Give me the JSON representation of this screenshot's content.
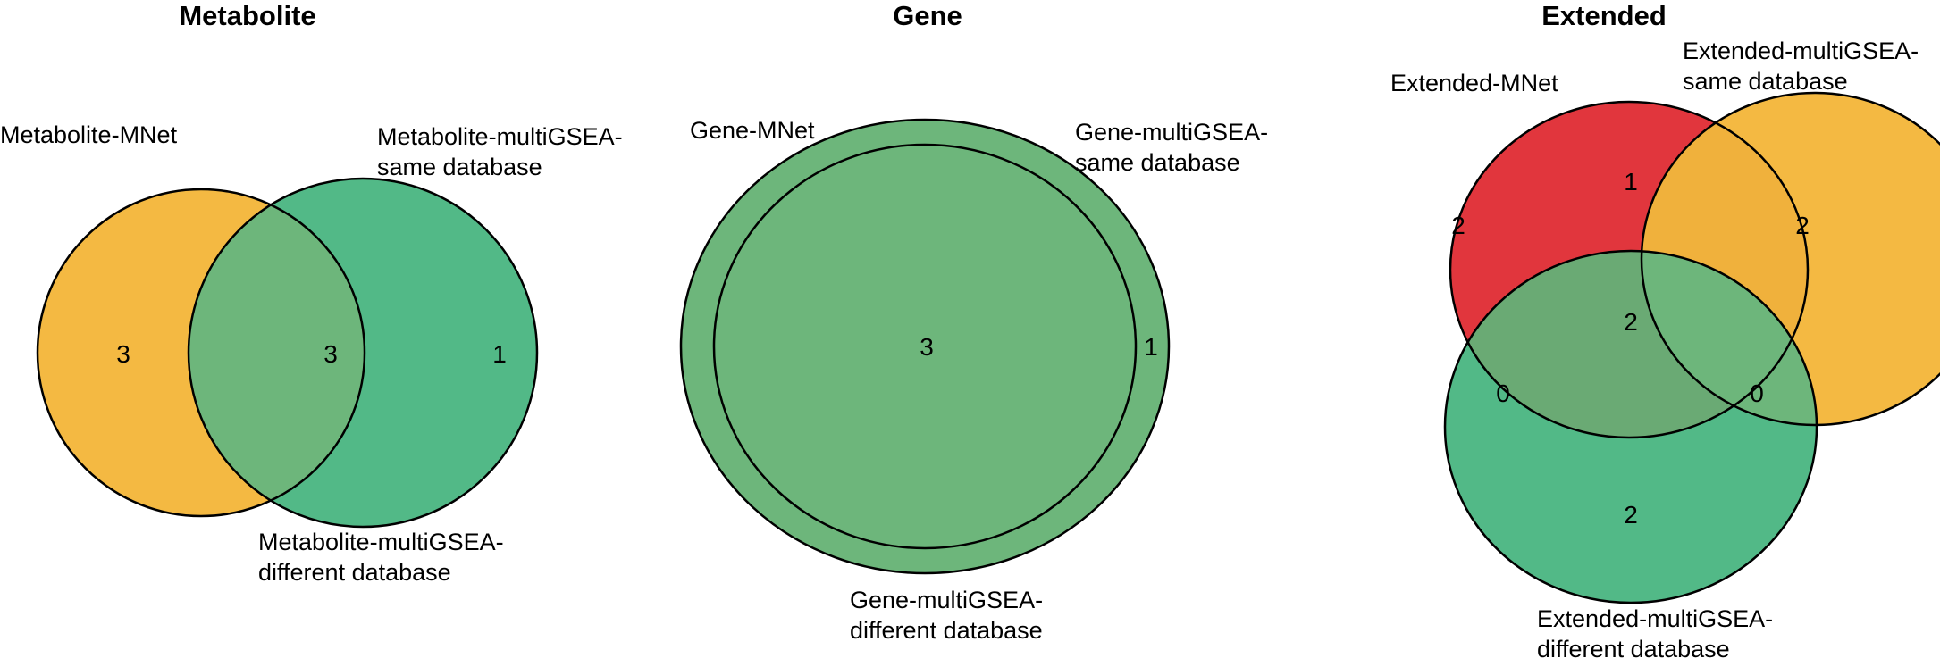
{
  "colors": {
    "orange": "#f4b942",
    "green": "#52b987",
    "red": "#e1363d",
    "green_overlap": "#6db67b",
    "orange_overlap": "#f0b13c",
    "outline": "#000000"
  },
  "panels": [
    {
      "title": "Metabolite",
      "sets": [
        {
          "name": "Metabolite-MNet",
          "lines": [
            "Metabolite-MNet"
          ]
        },
        {
          "name": "Metabolite-multiGSEA-same database",
          "lines": [
            "Metabolite-multiGSEA-",
            "same database"
          ]
        },
        {
          "name": "Metabolite-multiGSEA-different database",
          "lines": [
            "Metabolite-multiGSEA-",
            "different database"
          ]
        }
      ],
      "regions": [
        {
          "region": "Metabolite-MNet only",
          "count": "3"
        },
        {
          "region": "Metabolite-MNet ∩ Metabolite-multiGSEA-same database",
          "count": "3"
        },
        {
          "region": "Metabolite-multiGSEA-same database only",
          "count": "1"
        }
      ]
    },
    {
      "title": "Gene",
      "sets": [
        {
          "name": "Gene-MNet",
          "lines": [
            "Gene-MNet"
          ]
        },
        {
          "name": "Gene-multiGSEA-same database",
          "lines": [
            "Gene-multiGSEA-",
            "same database"
          ]
        },
        {
          "name": "Gene-multiGSEA-different database",
          "lines": [
            "Gene-multiGSEA-",
            "different database"
          ]
        }
      ],
      "regions": [
        {
          "region": "inner (all sets)",
          "count": "3"
        },
        {
          "region": "outer ring only",
          "count": "1"
        }
      ]
    },
    {
      "title": "Extended",
      "sets": [
        {
          "name": "Extended-MNet",
          "lines": [
            "Extended-MNet"
          ]
        },
        {
          "name": "Extended-multiGSEA-same database",
          "lines": [
            "Extended-multiGSEA-",
            "same database"
          ]
        },
        {
          "name": "Extended-multiGSEA-different database",
          "lines": [
            "Extended-multiGSEA-",
            "different database"
          ]
        }
      ],
      "regions": [
        {
          "region": "Extended-MNet only",
          "count": "2"
        },
        {
          "region": "Extended-MNet ∩ same database",
          "count": "1"
        },
        {
          "region": "same database only",
          "count": "2"
        },
        {
          "region": "all three",
          "count": "2"
        },
        {
          "region": "Extended-MNet ∩ different database",
          "count": "0"
        },
        {
          "region": "same database ∩ different database",
          "count": "0"
        },
        {
          "region": "different database only",
          "count": "2"
        }
      ]
    }
  ]
}
